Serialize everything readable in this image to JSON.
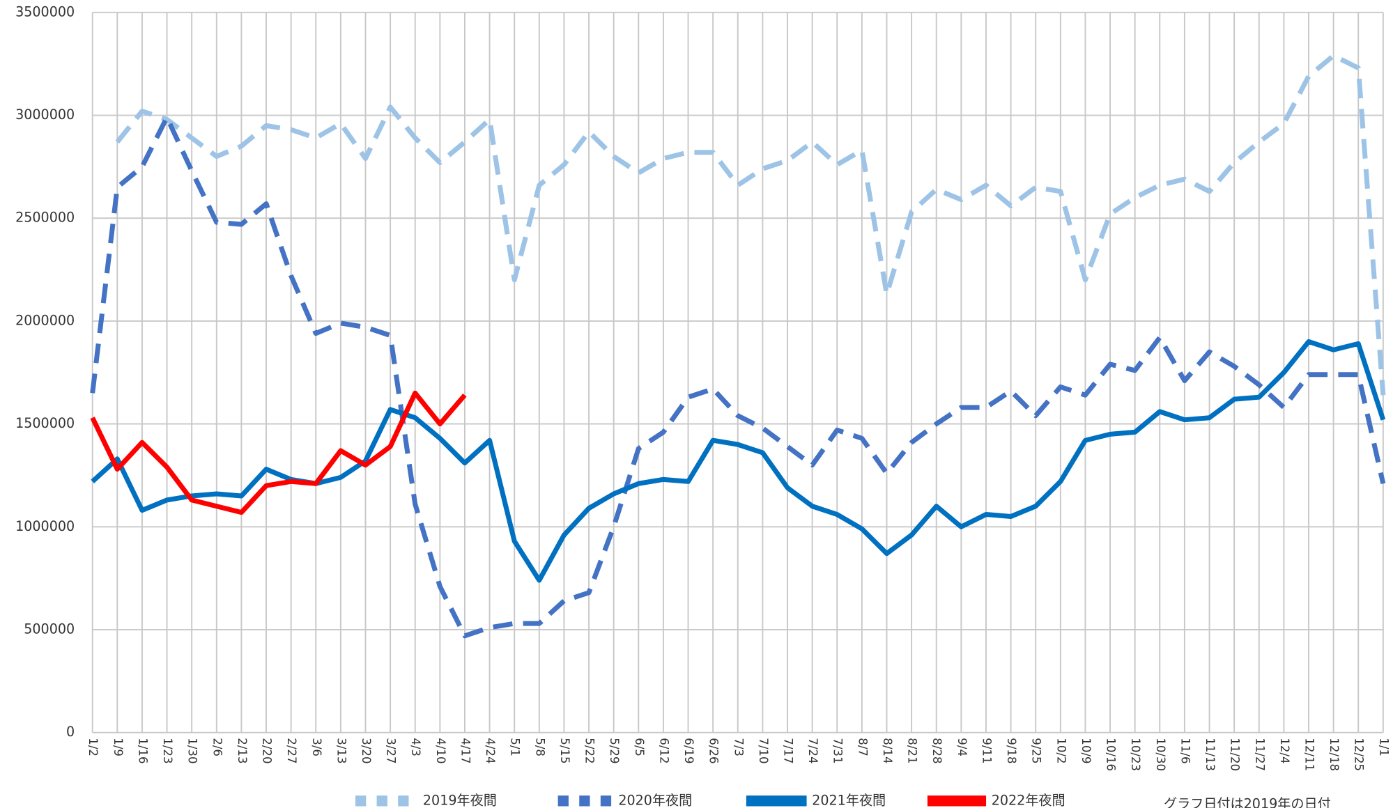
{
  "chart_data": {
    "type": "line",
    "categories": [
      "1/2",
      "1/9",
      "1/16",
      "1/23",
      "1/30",
      "2/6",
      "2/13",
      "2/20",
      "2/27",
      "3/6",
      "3/13",
      "3/20",
      "3/27",
      "4/3",
      "4/10",
      "4/17",
      "4/24",
      "5/1",
      "5/8",
      "5/15",
      "5/22",
      "5/29",
      "6/5",
      "6/12",
      "6/19",
      "6/26",
      "7/3",
      "7/10",
      "7/17",
      "7/24",
      "7/31",
      "8/7",
      "8/14",
      "8/21",
      "8/28",
      "9/4",
      "9/11",
      "9/18",
      "9/25",
      "10/2",
      "10/9",
      "10/16",
      "10/23",
      "10/30",
      "11/6",
      "11/13",
      "11/20",
      "11/27",
      "12/4",
      "12/11",
      "12/18",
      "12/25",
      "1/1"
    ],
    "series": [
      {
        "name": "2019年夜間",
        "color": "#9dc3e6",
        "style": "dashed",
        "values": [
          null,
          2870000,
          3020000,
          2980000,
          2890000,
          2800000,
          2850000,
          2950000,
          2930000,
          2890000,
          2960000,
          2790000,
          3040000,
          2890000,
          2770000,
          2870000,
          2980000,
          2200000,
          2660000,
          2760000,
          2920000,
          2800000,
          2720000,
          2790000,
          2820000,
          2820000,
          2660000,
          2740000,
          2780000,
          2870000,
          2760000,
          2830000,
          2130000,
          2530000,
          2640000,
          2590000,
          2660000,
          2560000,
          2650000,
          2630000,
          2200000,
          2520000,
          2600000,
          2660000,
          2690000,
          2630000,
          2770000,
          2870000,
          2960000,
          3190000,
          3290000,
          3230000,
          1640000
        ]
      },
      {
        "name": "2020年夜間",
        "color": "#4472c4",
        "style": "dashed",
        "values": [
          1650000,
          2650000,
          2750000,
          2990000,
          2730000,
          2480000,
          2470000,
          2570000,
          2220000,
          1940000,
          1990000,
          1970000,
          1930000,
          1110000,
          710000,
          470000,
          510000,
          530000,
          530000,
          640000,
          680000,
          1000000,
          1380000,
          1460000,
          1630000,
          1670000,
          1540000,
          1480000,
          1390000,
          1300000,
          1470000,
          1430000,
          1260000,
          1410000,
          1500000,
          1580000,
          1580000,
          1660000,
          1540000,
          1680000,
          1640000,
          1790000,
          1760000,
          1920000,
          1710000,
          1850000,
          1780000,
          1690000,
          1580000,
          1740000,
          1740000,
          1740000,
          1210000
        ]
      },
      {
        "name": "2021年夜間",
        "color": "#0070c0",
        "style": "solid",
        "values": [
          1220000,
          1330000,
          1080000,
          1130000,
          1150000,
          1160000,
          1150000,
          1280000,
          1230000,
          1210000,
          1240000,
          1320000,
          1570000,
          1530000,
          1430000,
          1310000,
          1420000,
          930000,
          740000,
          960000,
          1090000,
          1160000,
          1210000,
          1230000,
          1220000,
          1420000,
          1400000,
          1360000,
          1190000,
          1100000,
          1060000,
          990000,
          870000,
          960000,
          1100000,
          1000000,
          1060000,
          1050000,
          1100000,
          1220000,
          1420000,
          1450000,
          1460000,
          1560000,
          1520000,
          1530000,
          1620000,
          1630000,
          1750000,
          1900000,
          1860000,
          1890000,
          1520000
        ]
      },
      {
        "name": "2022年夜間",
        "color": "#ff0000",
        "style": "solid",
        "values": [
          1530000,
          1280000,
          1410000,
          1290000,
          1130000,
          1100000,
          1070000,
          1200000,
          1220000,
          1210000,
          1370000,
          1300000,
          1390000,
          1650000,
          1500000,
          1640000,
          null,
          null,
          null,
          null,
          null,
          null,
          null,
          null,
          null,
          null,
          null,
          null,
          null,
          null,
          null,
          null,
          null,
          null,
          null,
          null,
          null,
          null,
          null,
          null,
          null,
          null,
          null,
          null,
          null,
          null,
          null,
          null,
          null,
          null,
          null,
          null,
          null
        ]
      }
    ],
    "ylim": [
      0,
      3500000
    ],
    "yticks": [
      0,
      500000,
      1000000,
      1500000,
      2000000,
      2500000,
      3000000,
      3500000
    ],
    "grid": true,
    "legend": "bottom",
    "annotation": "グラフ日付は2019年の日付"
  }
}
